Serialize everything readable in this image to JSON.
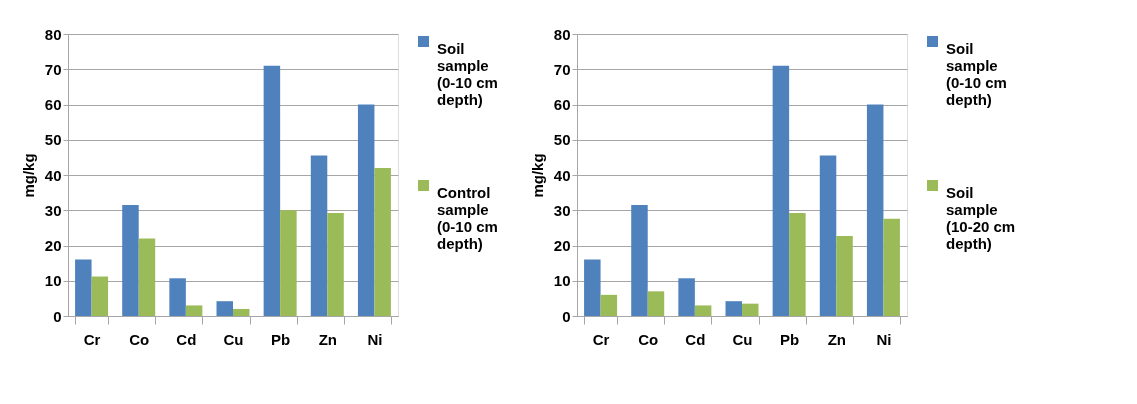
{
  "chart_data": [
    {
      "type": "bar",
      "ylabel": "mg/kg",
      "categories": [
        "Cr",
        "Co",
        "Cd",
        "Cu",
        "Pb",
        "Zn",
        "Ni"
      ],
      "ylim": [
        0,
        80
      ],
      "yticks": [
        0,
        10,
        20,
        30,
        40,
        50,
        60,
        70,
        80
      ],
      "grid": "y",
      "legend": "right",
      "series": [
        {
          "name": "Soil sample (0-10 cm depth)",
          "color": "#4f81bd",
          "values": [
            16,
            31.5,
            10.7,
            4.2,
            71,
            45.5,
            60
          ]
        },
        {
          "name": "Control sample (0-10 cm depth)",
          "color": "#9bbb59",
          "values": [
            11.2,
            22,
            3,
            2,
            30,
            29.2,
            42
          ]
        }
      ]
    },
    {
      "type": "bar",
      "ylabel": "mg/kg",
      "categories": [
        "Cr",
        "Co",
        "Cd",
        "Cu",
        "Pb",
        "Zn",
        "Ni"
      ],
      "ylim": [
        0,
        80
      ],
      "yticks": [
        0,
        10,
        20,
        30,
        40,
        50,
        60,
        70,
        80
      ],
      "grid": "y",
      "legend": "right",
      "series": [
        {
          "name": "Soil sample (0-10 cm depth)",
          "color": "#4f81bd",
          "values": [
            16,
            31.5,
            10.7,
            4.2,
            71,
            45.5,
            60
          ]
        },
        {
          "name": "Soil sample (10-20 cm depth)",
          "color": "#9bbb59",
          "values": [
            6,
            7,
            3,
            3.5,
            29.2,
            22.7,
            27.6
          ]
        }
      ]
    }
  ]
}
